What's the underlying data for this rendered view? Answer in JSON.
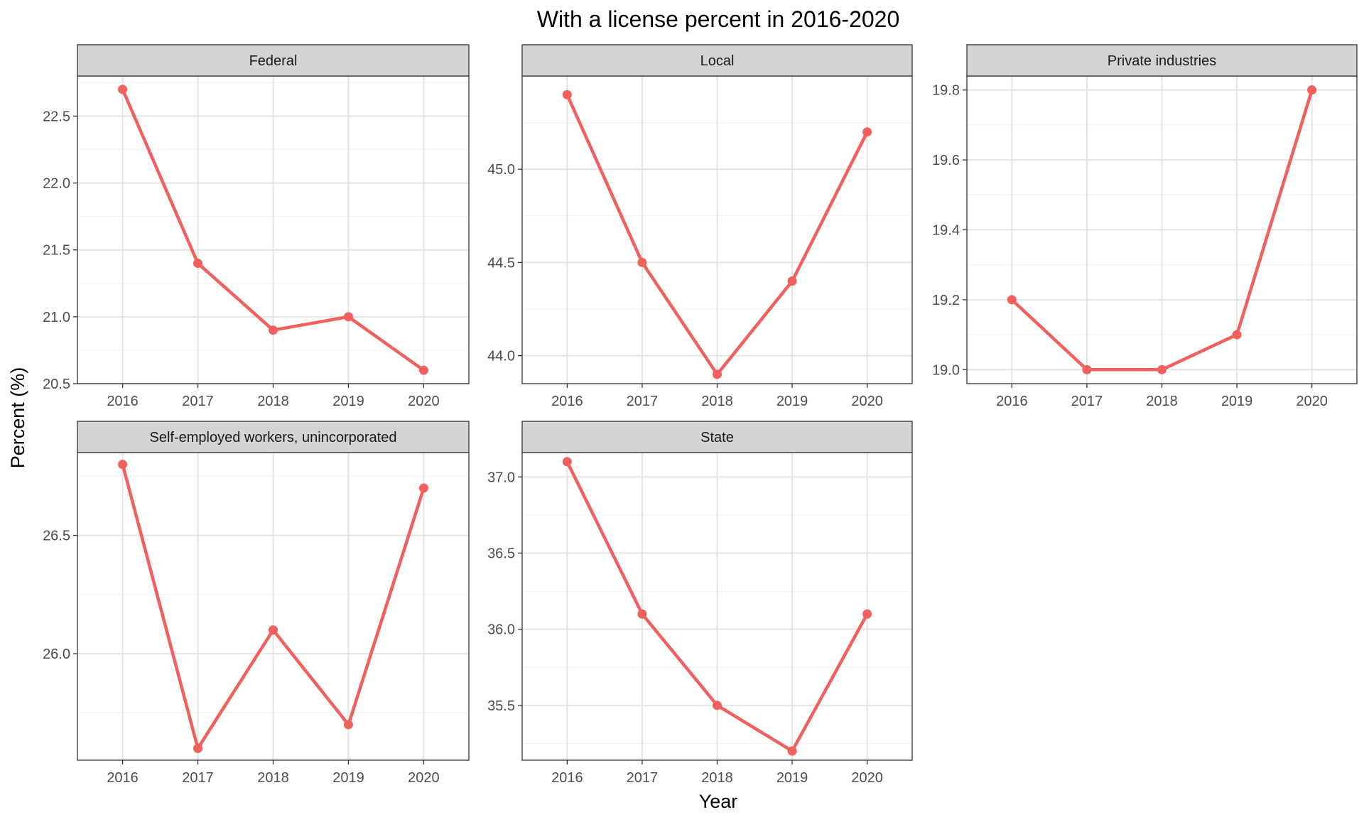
{
  "chart_data": {
    "type": "line",
    "title": "With a license percent in 2016-2020",
    "xlabel": "Year",
    "ylabel": "Percent (%)",
    "x": [
      "2016",
      "2017",
      "2018",
      "2019",
      "2020"
    ],
    "grid": true,
    "legend": "none",
    "line_color": "#f0605d",
    "panels": [
      {
        "name": "Federal",
        "values": [
          22.7,
          21.4,
          20.9,
          21.0,
          20.6
        ],
        "ylim": [
          20.5,
          22.8
        ],
        "yticks": [
          "20.5",
          "21.0",
          "21.5",
          "22.0",
          "22.5"
        ]
      },
      {
        "name": "Local",
        "values": [
          45.4,
          44.5,
          43.9,
          44.4,
          45.2
        ],
        "ylim": [
          43.85,
          45.5
        ],
        "yticks": [
          "44.0",
          "44.5",
          "45.0"
        ]
      },
      {
        "name": "Private industries",
        "values": [
          19.2,
          19.0,
          19.0,
          19.1,
          19.8
        ],
        "ylim": [
          18.96,
          19.84
        ],
        "yticks": [
          "19.0",
          "19.2",
          "19.4",
          "19.6",
          "19.8"
        ]
      },
      {
        "name": "Self-employed workers, unincorporated",
        "values": [
          26.8,
          25.6,
          26.1,
          25.7,
          26.7
        ],
        "ylim": [
          25.55,
          26.85
        ],
        "yticks": [
          "26.0",
          "26.5"
        ]
      },
      {
        "name": "State",
        "values": [
          37.1,
          36.1,
          35.5,
          35.2,
          36.1
        ],
        "ylim": [
          35.14,
          37.16
        ],
        "yticks": [
          "35.5",
          "36.0",
          "36.5",
          "37.0"
        ]
      }
    ]
  }
}
